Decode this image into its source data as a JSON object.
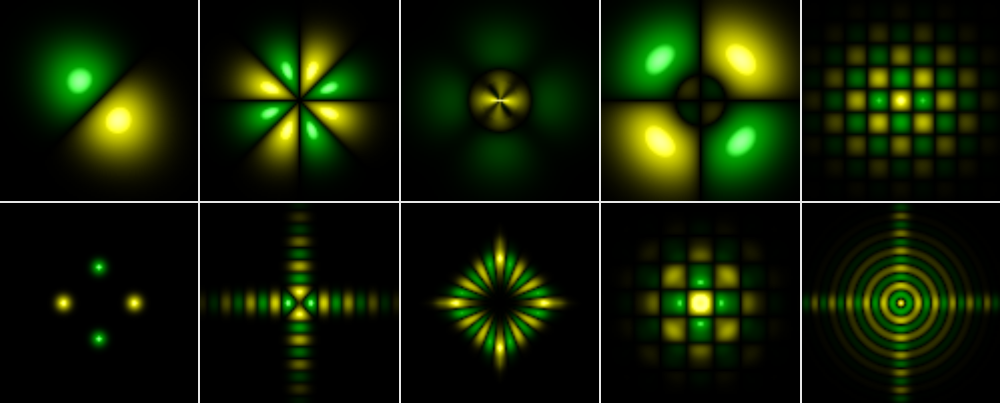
{
  "figure": {
    "rows": 2,
    "cols": 5,
    "colors": {
      "positive": "#ffff00",
      "negative": "#00c000",
      "node": "#000000",
      "background": "#000000",
      "separator": "#e6e6e6"
    },
    "panels": [
      {
        "row": 1,
        "col": 1,
        "pattern": "diagonal-dipole"
      },
      {
        "row": 1,
        "col": 2,
        "pattern": "eight-lobe-rosette"
      },
      {
        "row": 1,
        "col": 3,
        "pattern": "ring-with-inner-cross"
      },
      {
        "row": 1,
        "col": 4,
        "pattern": "four-quadrant-ring"
      },
      {
        "row": 1,
        "col": 5,
        "pattern": "square-lattice"
      },
      {
        "row": 2,
        "col": 1,
        "pattern": "four-spot"
      },
      {
        "row": 2,
        "col": 2,
        "pattern": "cross-fringes"
      },
      {
        "row": 2,
        "col": 3,
        "pattern": "diamond-ring"
      },
      {
        "row": 2,
        "col": 4,
        "pattern": "square-ring-grid"
      },
      {
        "row": 2,
        "col": 5,
        "pattern": "concentric-star"
      }
    ]
  }
}
